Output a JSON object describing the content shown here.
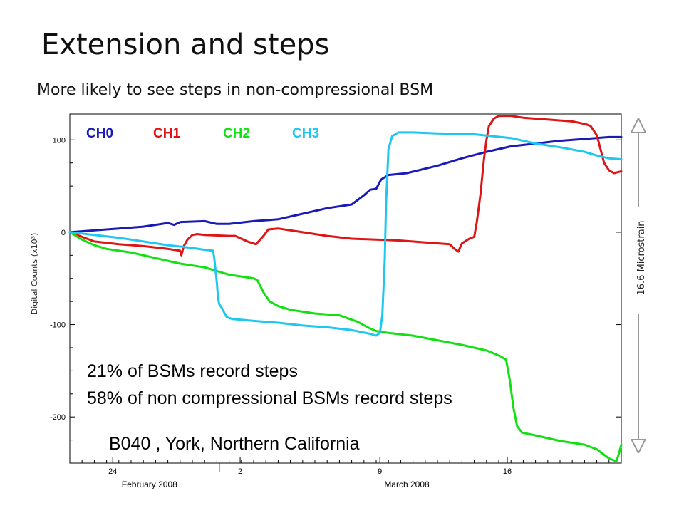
{
  "slide": {
    "title": "Extension and steps",
    "subtitle": "More likely to see steps in non-compressional BSM",
    "notes": [
      "21% of BSMs record steps",
      "58% of non compressional BSMs record steps"
    ],
    "station": "B040 , York, Northern California",
    "scale_label": "16.6 Microstrain"
  },
  "chart_data": {
    "type": "line",
    "title": "",
    "xlabel": "",
    "ylabel": "Digital Counts (x10³)",
    "ylim": [
      -250,
      128
    ],
    "xlim": [
      0,
      45
    ],
    "y_ticks": [
      {
        "value": 100,
        "label": "100"
      },
      {
        "value": 0,
        "label": "0"
      },
      {
        "value": -100,
        "label": "-100"
      },
      {
        "value": -200,
        "label": "-200"
      }
    ],
    "x_ticks": [
      {
        "value": 3.5,
        "label": "24"
      },
      {
        "value": 13.9,
        "label": "2"
      },
      {
        "value": 25.3,
        "label": "9"
      },
      {
        "value": 35.7,
        "label": "16"
      }
    ],
    "month_labels": [
      {
        "value": 6.5,
        "label": "February 2008"
      },
      {
        "value": 27.5,
        "label": "March 2008"
      }
    ],
    "month_boundary": 12.2,
    "grid": false,
    "legend_position": "top-left",
    "series": [
      {
        "name": "CH0",
        "color": "#1a1ab8",
        "points": [
          [
            0,
            0
          ],
          [
            2,
            2
          ],
          [
            4,
            4
          ],
          [
            6,
            6
          ],
          [
            8,
            10
          ],
          [
            8.5,
            8
          ],
          [
            9,
            11
          ],
          [
            11,
            12
          ],
          [
            12,
            9
          ],
          [
            13,
            9
          ],
          [
            15,
            12
          ],
          [
            17,
            14
          ],
          [
            19,
            20
          ],
          [
            21,
            26
          ],
          [
            23,
            30
          ],
          [
            24,
            40
          ],
          [
            24.5,
            46
          ],
          [
            25,
            47
          ],
          [
            25.4,
            57
          ],
          [
            26,
            62
          ],
          [
            27.5,
            64
          ],
          [
            30,
            72
          ],
          [
            32,
            80
          ],
          [
            34,
            87
          ],
          [
            36,
            93
          ],
          [
            38,
            96
          ],
          [
            40,
            99
          ],
          [
            42,
            101
          ],
          [
            44,
            103
          ],
          [
            45,
            103
          ]
        ]
      },
      {
        "name": "CH1",
        "color": "#e01414",
        "points": [
          [
            0,
            0
          ],
          [
            1,
            -5
          ],
          [
            2,
            -10
          ],
          [
            4,
            -13
          ],
          [
            6,
            -15
          ],
          [
            8,
            -18
          ],
          [
            9,
            -20
          ],
          [
            9.1,
            -25
          ],
          [
            9.3,
            -15
          ],
          [
            9.6,
            -8
          ],
          [
            10,
            -3
          ],
          [
            10.4,
            -2
          ],
          [
            11,
            -3
          ],
          [
            13,
            -4
          ],
          [
            13.5,
            -4
          ],
          [
            14.5,
            -10
          ],
          [
            15.2,
            -13
          ],
          [
            15.8,
            -4
          ],
          [
            16.2,
            3
          ],
          [
            17,
            4
          ],
          [
            19,
            0
          ],
          [
            21,
            -4
          ],
          [
            23,
            -7
          ],
          [
            25,
            -8
          ],
          [
            27,
            -9
          ],
          [
            29,
            -11
          ],
          [
            31,
            -13
          ],
          [
            31.4,
            -18
          ],
          [
            31.7,
            -21
          ],
          [
            32,
            -12
          ],
          [
            32.6,
            -7
          ],
          [
            33,
            -5
          ],
          [
            33.2,
            10
          ],
          [
            33.5,
            40
          ],
          [
            33.8,
            80
          ],
          [
            34,
            100
          ],
          [
            34.2,
            115
          ],
          [
            34.6,
            123
          ],
          [
            35,
            126
          ],
          [
            36,
            126
          ],
          [
            37,
            124
          ],
          [
            39,
            122
          ],
          [
            41,
            120
          ],
          [
            42.1,
            117
          ],
          [
            42.5,
            115
          ],
          [
            43,
            105
          ],
          [
            43.3,
            90
          ],
          [
            43.6,
            75
          ],
          [
            44,
            67
          ],
          [
            44.4,
            64
          ],
          [
            45,
            66
          ]
        ]
      },
      {
        "name": "CH2",
        "color": "#12e012",
        "points": [
          [
            0,
            0
          ],
          [
            1,
            -8
          ],
          [
            2,
            -14
          ],
          [
            3,
            -18
          ],
          [
            5,
            -22
          ],
          [
            7,
            -28
          ],
          [
            9,
            -34
          ],
          [
            11,
            -38
          ],
          [
            12,
            -42
          ],
          [
            13,
            -46
          ],
          [
            14,
            -48
          ],
          [
            15,
            -50
          ],
          [
            15.3,
            -52
          ],
          [
            15.8,
            -65
          ],
          [
            16.3,
            -75
          ],
          [
            17,
            -80
          ],
          [
            18,
            -84
          ],
          [
            20,
            -88
          ],
          [
            22,
            -90
          ],
          [
            23.5,
            -97
          ],
          [
            24.3,
            -103
          ],
          [
            25,
            -107
          ],
          [
            26,
            -109
          ],
          [
            28,
            -112
          ],
          [
            30,
            -117
          ],
          [
            32,
            -122
          ],
          [
            34,
            -128
          ],
          [
            35.1,
            -134
          ],
          [
            35.6,
            -138
          ],
          [
            35.9,
            -160
          ],
          [
            36.2,
            -190
          ],
          [
            36.5,
            -210
          ],
          [
            36.9,
            -217
          ],
          [
            38,
            -220
          ],
          [
            40,
            -226
          ],
          [
            42,
            -230
          ],
          [
            43,
            -235
          ],
          [
            44,
            -245
          ],
          [
            44.6,
            -248
          ],
          [
            44.8,
            -240
          ],
          [
            45,
            -230
          ]
        ]
      },
      {
        "name": "CH3",
        "color": "#1ec6f0",
        "points": [
          [
            0,
            0
          ],
          [
            2,
            -3
          ],
          [
            4,
            -6
          ],
          [
            6,
            -10
          ],
          [
            8,
            -14
          ],
          [
            10,
            -17
          ],
          [
            11,
            -19
          ],
          [
            11.7,
            -20
          ],
          [
            11.8,
            -30
          ],
          [
            12,
            -55
          ],
          [
            12.1,
            -72
          ],
          [
            12.2,
            -78
          ],
          [
            12.4,
            -82
          ],
          [
            12.8,
            -92
          ],
          [
            13.3,
            -94
          ],
          [
            15,
            -96
          ],
          [
            17,
            -98
          ],
          [
            19,
            -101
          ],
          [
            21,
            -103
          ],
          [
            23,
            -106
          ],
          [
            24.5,
            -110
          ],
          [
            25,
            -112
          ],
          [
            25.3,
            -109
          ],
          [
            25.5,
            -90
          ],
          [
            25.6,
            -60
          ],
          [
            25.7,
            -30
          ],
          [
            25.75,
            0
          ],
          [
            25.8,
            30
          ],
          [
            25.9,
            60
          ],
          [
            26,
            90
          ],
          [
            26.3,
            104
          ],
          [
            26.8,
            108
          ],
          [
            28,
            108
          ],
          [
            30,
            107
          ],
          [
            33,
            106
          ],
          [
            36,
            102
          ],
          [
            38,
            96
          ],
          [
            40,
            92
          ],
          [
            42,
            87
          ],
          [
            43,
            83
          ],
          [
            44,
            80
          ],
          [
            45,
            79
          ]
        ]
      }
    ]
  }
}
